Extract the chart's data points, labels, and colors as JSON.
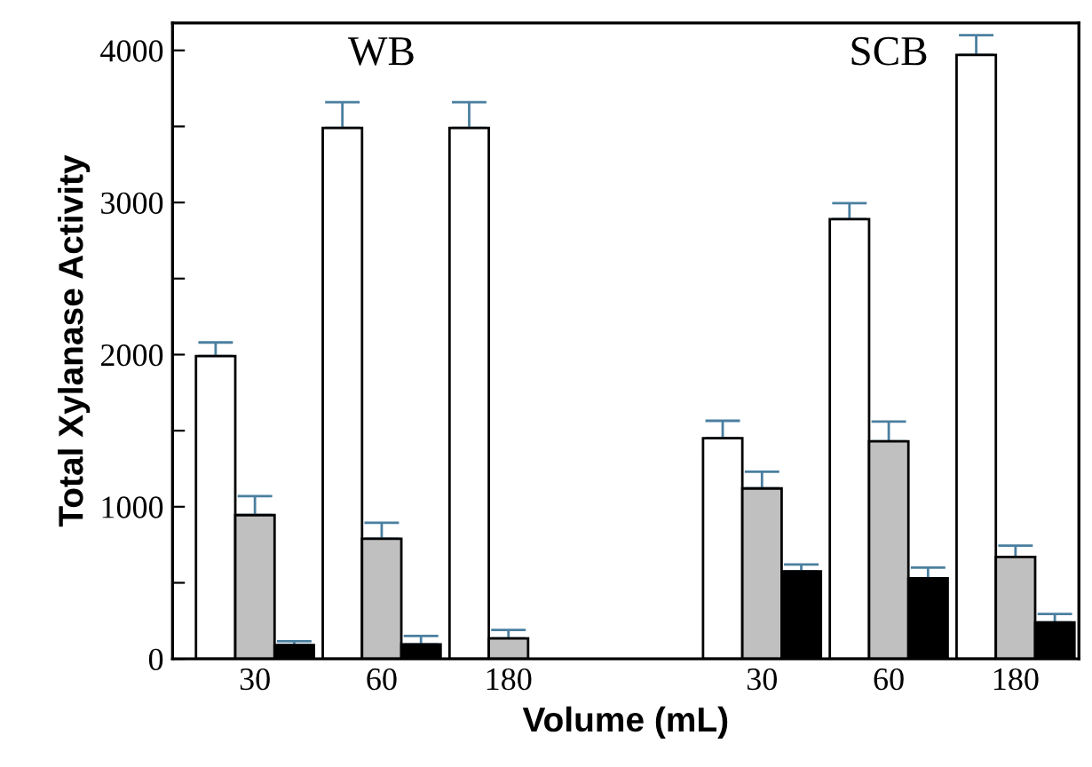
{
  "chart_data": {
    "type": "bar",
    "xlabel": "Volume (mL)",
    "ylabel": "Total Xylanase Activity",
    "categories": [
      "30",
      "60",
      "180",
      null,
      "30",
      "60",
      "180"
    ],
    "series": [
      {
        "color": "#ffffff",
        "values": [
          1990,
          3490,
          3490,
          null,
          1450,
          2890,
          3970
        ],
        "errors": [
          [
            1990,
            2080
          ],
          [
            3490,
            3660
          ],
          [
            3490,
            3660
          ],
          null,
          [
            1450,
            1565
          ],
          [
            2890,
            2995
          ],
          [
            3970,
            4100
          ]
        ]
      },
      {
        "color": "#c0c0c0",
        "values": [
          945,
          790,
          135,
          null,
          1120,
          1430,
          670
        ],
        "errors": [
          [
            945,
            1070
          ],
          [
            790,
            895
          ],
          [
            135,
            190
          ],
          null,
          [
            1120,
            1230
          ],
          [
            1430,
            1560
          ],
          [
            670,
            745
          ]
        ]
      },
      {
        "color": "#000000",
        "values": [
          90,
          95,
          null,
          null,
          575,
          530,
          240
        ],
        "errors": [
          [
            90,
            115
          ],
          [
            95,
            150
          ],
          null,
          null,
          [
            575,
            620
          ],
          [
            530,
            600
          ],
          [
            240,
            295
          ]
        ]
      }
    ],
    "annotations": [
      "WB",
      "SCB"
    ],
    "ylim": [
      0,
      4180
    ],
    "yticks": [
      0,
      {
        "value": 500,
        "label": null
      },
      1000,
      {
        "value": 1500,
        "label": null
      },
      2000,
      {
        "value": 2500,
        "label": null
      },
      3000,
      {
        "value": 3500,
        "label": null
      },
      4000
    ],
    "grid": false,
    "legend": false
  }
}
